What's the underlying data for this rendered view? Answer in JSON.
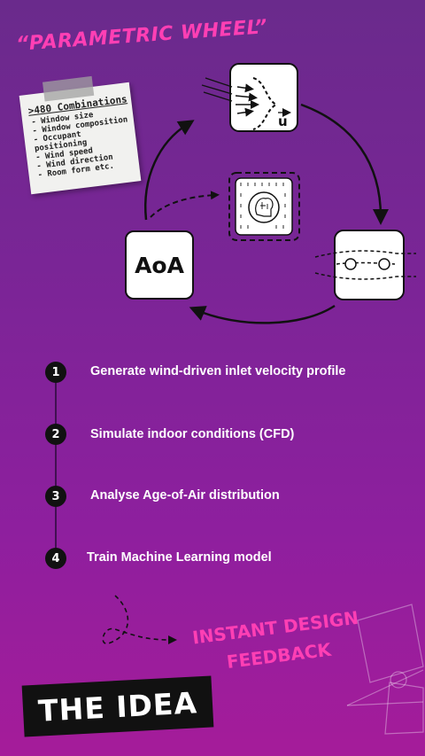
{
  "header": {
    "title": "“PARAMETRIC WHEEL”"
  },
  "note": {
    "title": ">480 Combinations",
    "items": [
      "Window size",
      "Window composition",
      "Occupant positioning",
      "Wind speed",
      "Wind direction",
      "Room form etc."
    ]
  },
  "diagram": {
    "aoa_label": "AoA",
    "velocity_symbol": "u"
  },
  "steps": [
    {
      "number": "1",
      "label": "Generate wind-driven inlet velocity profile"
    },
    {
      "number": "2",
      "label": "Simulate indoor conditions (CFD)"
    },
    {
      "number": "3",
      "label": "Analyse Age-of-Air distribution"
    },
    {
      "number": "4",
      "label": "Train Machine Learning model"
    }
  ],
  "footer": {
    "instant_line1": "INSTANT DESIGN",
    "instant_line2": "FEEDBACK",
    "idea": "THE IDEA"
  },
  "colors": {
    "accent": "#ff3fb4",
    "dark": "#111111",
    "text": "#ffffff"
  }
}
